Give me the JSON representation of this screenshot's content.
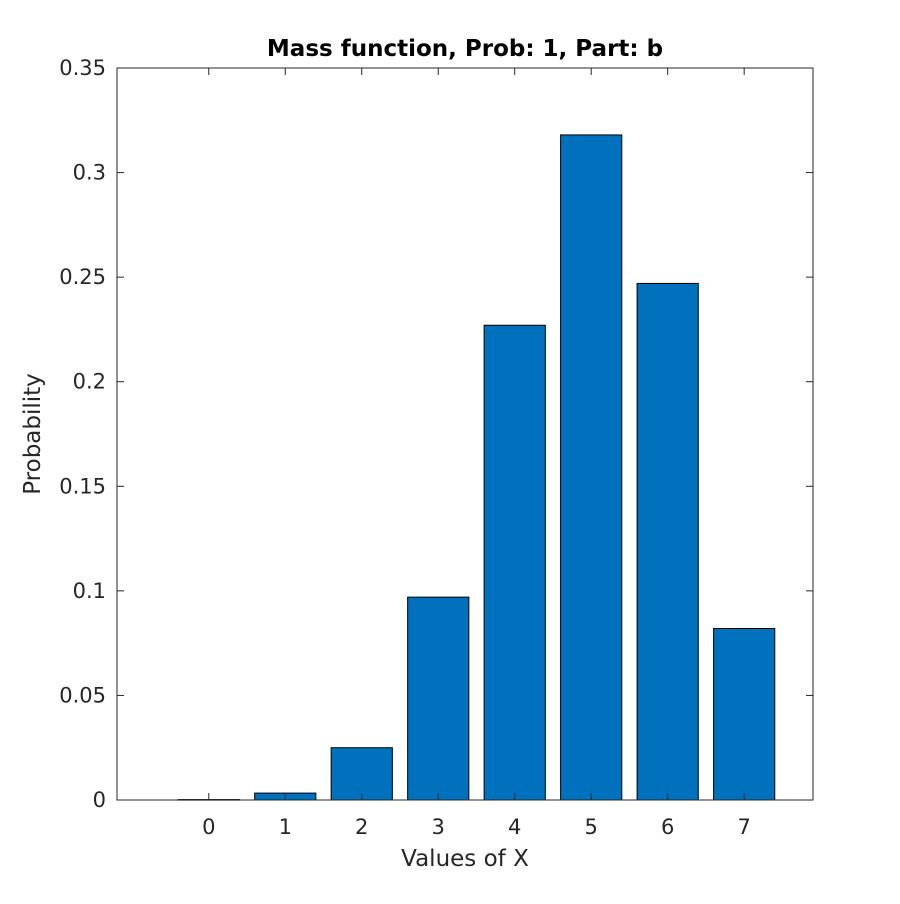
{
  "chart_data": {
    "type": "bar",
    "title": "Mass function, Prob: 1, Part: b",
    "xlabel": "Values of X",
    "ylabel": "Probability",
    "categories": [
      "0",
      "1",
      "2",
      "3",
      "4",
      "5",
      "6",
      "7"
    ],
    "x": [
      0,
      1,
      2,
      3,
      4,
      5,
      6,
      7
    ],
    "values": [
      0.0002,
      0.0033,
      0.025,
      0.097,
      0.227,
      0.318,
      0.247,
      0.082
    ],
    "xlim": [
      -1.2,
      7.9
    ],
    "ylim": [
      0,
      0.35
    ],
    "yticks": [
      0,
      0.05,
      0.1,
      0.15,
      0.2,
      0.25,
      0.3,
      0.35
    ],
    "ytick_labels": [
      "0",
      "0.05",
      "0.1",
      "0.15",
      "0.2",
      "0.25",
      "0.3",
      "0.35"
    ],
    "grid": false,
    "legend": "none",
    "bar_color": "#0072BD",
    "bar_edge_color": "#000000",
    "axis_color": "#262626"
  }
}
